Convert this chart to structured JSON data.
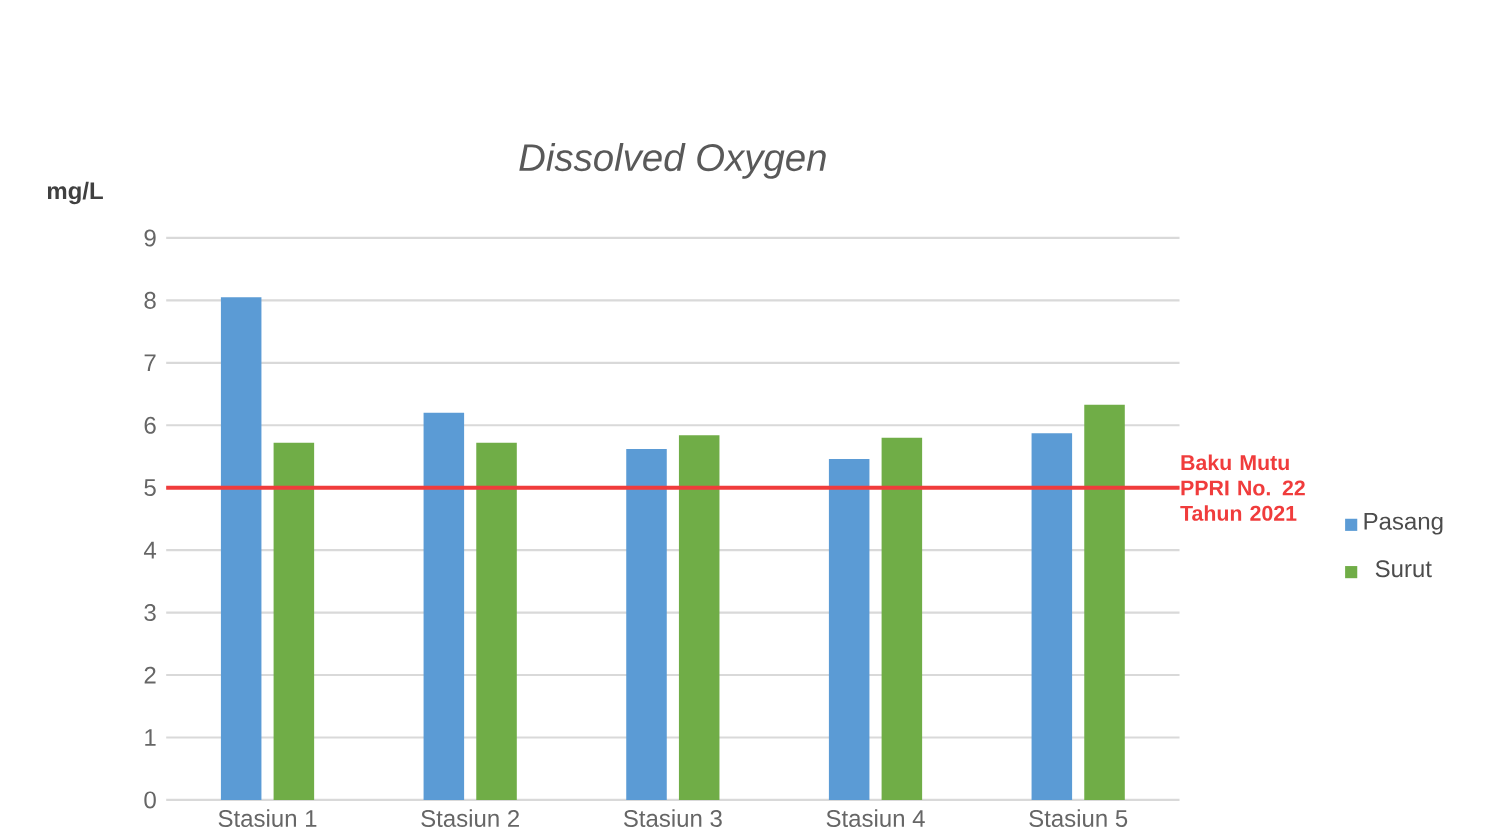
{
  "chart_data": {
    "type": "bar",
    "title": "Dissolved Oxygen",
    "ylabel": "mg/L",
    "categories": [
      "Stasiun 1",
      "Stasiun 2",
      "Stasiun 3",
      "Stasiun 4",
      "Stasiun 5"
    ],
    "series": [
      {
        "name": "Pasang",
        "color": "#5b9bd5",
        "values": [
          8.05,
          6.2,
          5.62,
          5.46,
          5.87
        ]
      },
      {
        "name": "Surut",
        "color": "#70ad47",
        "values": [
          5.72,
          5.72,
          5.84,
          5.8,
          6.33
        ]
      }
    ],
    "ylim": [
      0,
      9
    ],
    "yticks": [
      0,
      1,
      2,
      3,
      4,
      5,
      6,
      7,
      8,
      9
    ],
    "grid": "y",
    "legend": "right",
    "ref_lines": [
      {
        "axis": "y",
        "value": 5,
        "label": "Baku Mutu PPRI No. 22 Tahun 2021",
        "color": "#f03c3c"
      }
    ]
  }
}
